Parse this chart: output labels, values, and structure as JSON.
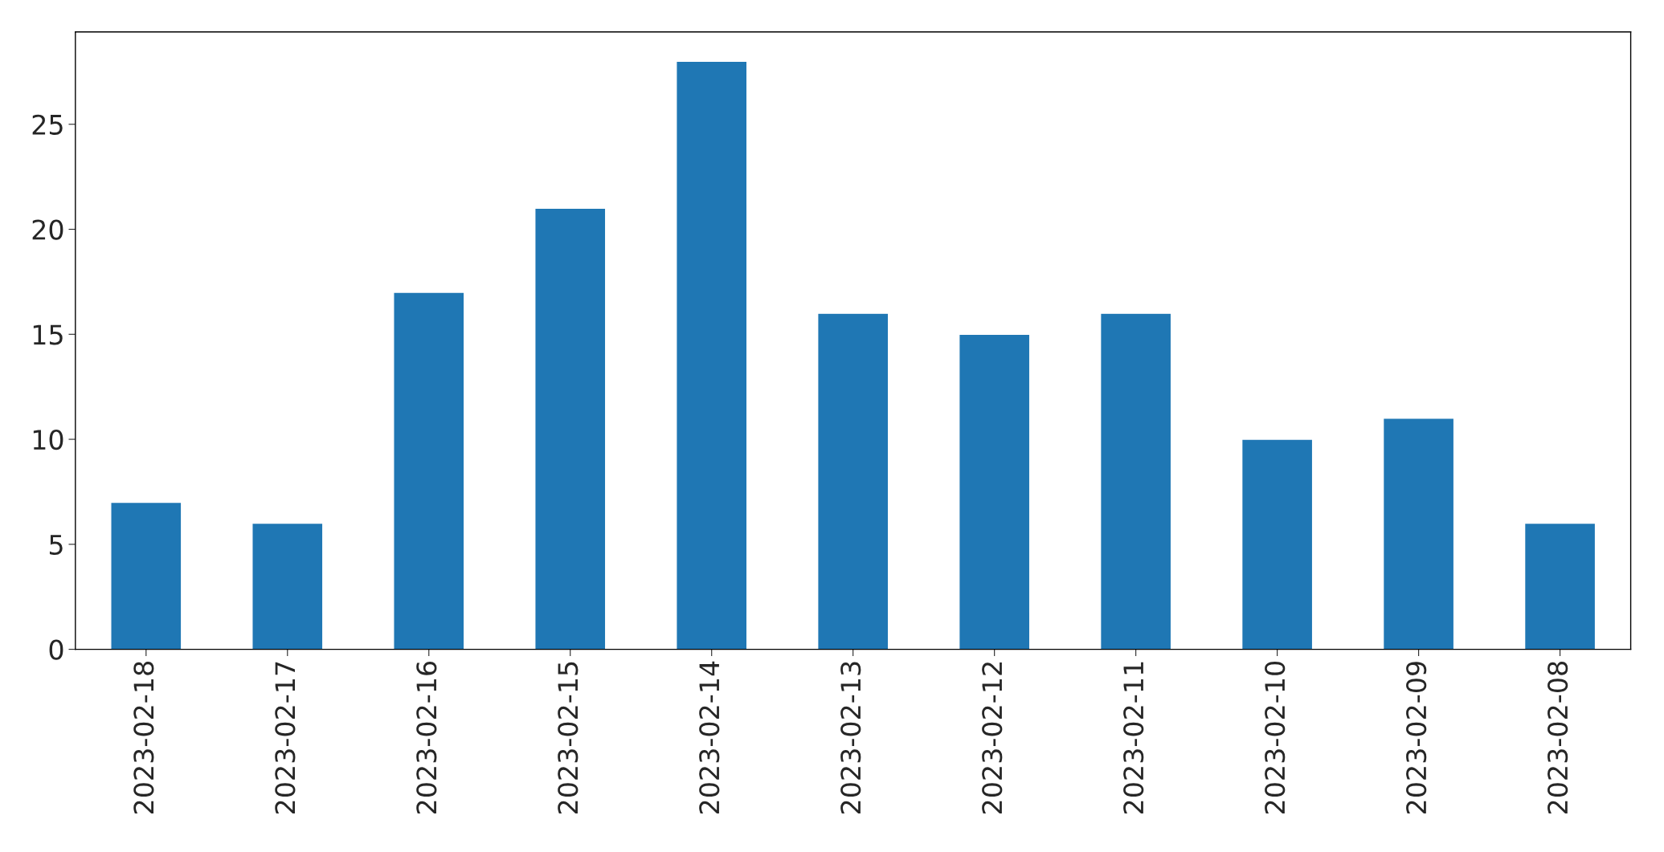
{
  "chart_data": {
    "type": "bar",
    "categories": [
      "2023-02-18",
      "2023-02-17",
      "2023-02-16",
      "2023-02-15",
      "2023-02-14",
      "2023-02-13",
      "2023-02-12",
      "2023-02-11",
      "2023-02-10",
      "2023-02-09",
      "2023-02-08"
    ],
    "values": [
      7,
      6,
      17,
      21,
      28,
      16,
      15,
      16,
      10,
      11,
      6
    ],
    "color": "#1f77b4",
    "ylim": [
      0,
      29.4
    ],
    "yticks": [
      0,
      5,
      10,
      15,
      20,
      25
    ]
  }
}
